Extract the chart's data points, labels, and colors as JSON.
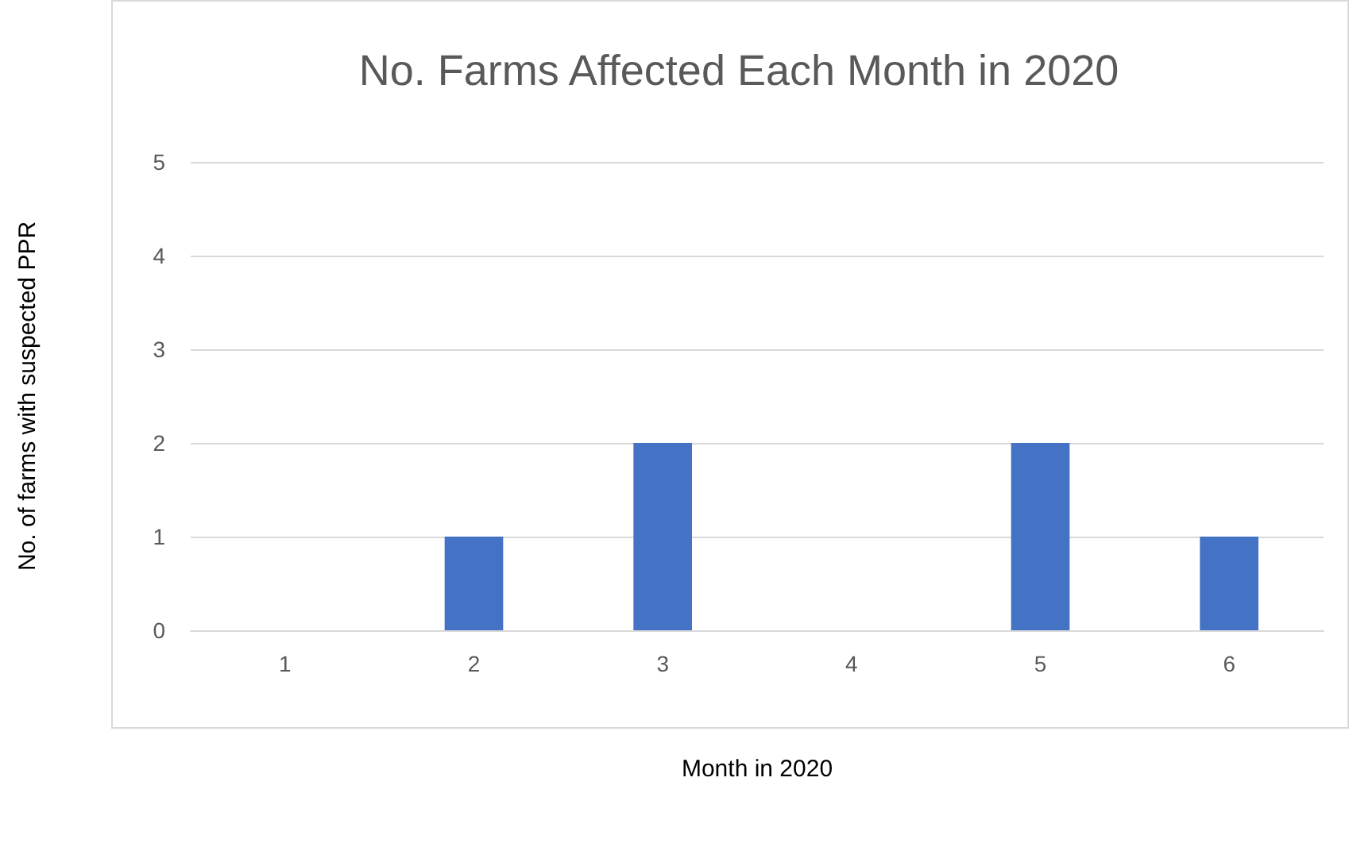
{
  "chart_data": {
    "type": "bar",
    "title": "No. Farms Affected Each Month in 2020",
    "xlabel": "Month in 2020",
    "ylabel": "No. of farms with suspected PPR",
    "categories": [
      "1",
      "2",
      "3",
      "4",
      "5",
      "6"
    ],
    "values": [
      0,
      1,
      2,
      0,
      2,
      1
    ],
    "color": "#4472c4",
    "ylim": [
      0,
      5
    ],
    "yticks": [
      0,
      1,
      2,
      3,
      4,
      5
    ],
    "grid": "y"
  }
}
